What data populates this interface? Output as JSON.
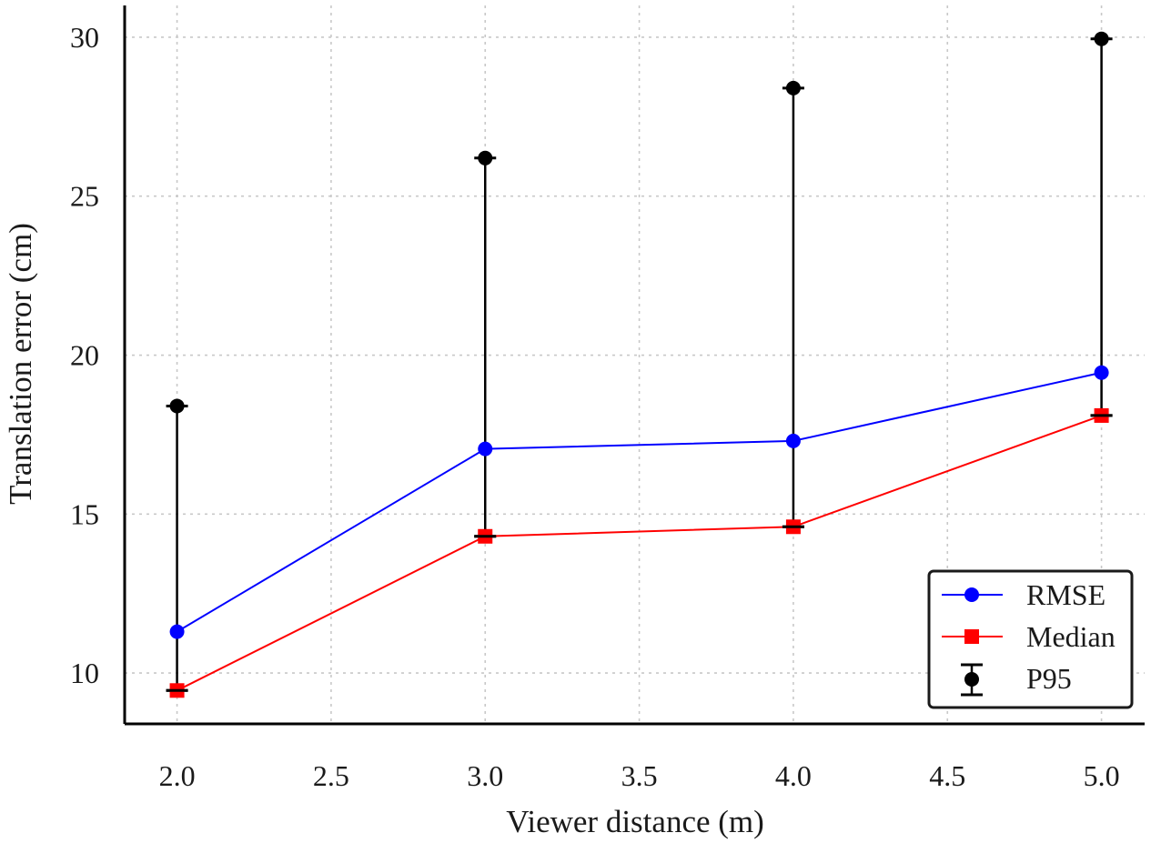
{
  "chart_data": {
    "type": "line",
    "title": "",
    "xlabel": "Viewer distance (m)",
    "ylabel": "Translation error (cm)",
    "x": [
      2.0,
      3.0,
      4.0,
      5.0
    ],
    "xlim": [
      1.83,
      5.14
    ],
    "ylim": [
      8.4,
      31.0
    ],
    "xticks": [
      2.0,
      2.5,
      3.0,
      3.5,
      4.0,
      4.5,
      5.0
    ],
    "xtick_labels": [
      "2.0",
      "2.5",
      "3.0",
      "3.5",
      "4.0",
      "4.5",
      "5.0"
    ],
    "yticks": [
      10,
      15,
      20,
      25,
      30
    ],
    "ytick_labels": [
      "10",
      "15",
      "20",
      "25",
      "30"
    ],
    "grid": true,
    "series": [
      {
        "name": "RMSE",
        "values": [
          11.3,
          17.05,
          17.3,
          19.45
        ],
        "color": "#0000ff",
        "marker": "circle"
      },
      {
        "name": "Median",
        "values": [
          9.45,
          14.3,
          14.6,
          18.1
        ],
        "color": "#ff0000",
        "marker": "square"
      }
    ],
    "errorbars": {
      "name": "P95",
      "color": "#000000",
      "x": [
        2.0,
        3.0,
        4.0,
        5.0
      ],
      "lower": [
        9.45,
        14.3,
        14.6,
        18.1
      ],
      "upper": [
        18.4,
        26.2,
        28.4,
        29.95
      ]
    },
    "legend": {
      "position": "bottom-right",
      "entries": [
        "RMSE",
        "Median",
        "P95"
      ]
    }
  }
}
